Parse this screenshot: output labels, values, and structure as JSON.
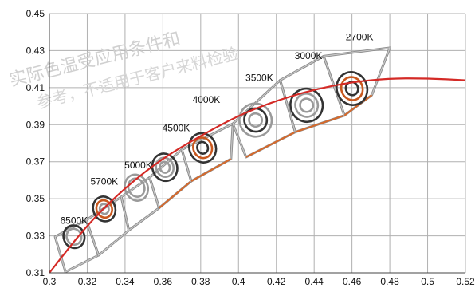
{
  "chart_data": {
    "type": "scatter",
    "title": "",
    "xlabel": "",
    "ylabel": "",
    "xlim": [
      0.3,
      0.52
    ],
    "ylim": [
      0.31,
      0.45
    ],
    "x_ticks": [
      "0.3",
      "0.32",
      "0.34",
      "0.36",
      "0.38",
      "0.4",
      "0.42",
      "0.44",
      "0.46",
      "0.48",
      "0.5",
      "0.52"
    ],
    "y_ticks": [
      "0.31",
      "0.33",
      "0.35",
      "0.37",
      "0.39",
      "0.41",
      "0.43",
      "0.45"
    ],
    "grid": true,
    "colors": {
      "locus": "#d42a26",
      "bin_outline": "#8a8a8a",
      "bin_edge_light": "#c8c8c8",
      "bin_edge_orange": "#d8692a",
      "ellipse_dark": "#333333",
      "ellipse_gray": "#9a9a9a",
      "ellipse_orange": "#c8581e",
      "grid": "#b0b0b0"
    },
    "locus": {
      "name": "blackbody locus",
      "x": [
        0.3,
        0.32,
        0.34,
        0.36,
        0.38,
        0.4,
        0.42,
        0.44,
        0.46,
        0.48,
        0.5,
        0.52
      ],
      "y": [
        0.31,
        0.336,
        0.356,
        0.372,
        0.384,
        0.395,
        0.403,
        0.409,
        0.413,
        0.415,
        0.415,
        0.414
      ]
    },
    "cct_labels": [
      {
        "text": "6500K",
        "x": 0.313,
        "y": 0.3365
      },
      {
        "text": "5700K",
        "x": 0.329,
        "y": 0.3575
      },
      {
        "text": "5000K",
        "x": 0.347,
        "y": 0.3665
      },
      {
        "text": "4500K",
        "x": 0.367,
        "y": 0.3865
      },
      {
        "text": "4000K",
        "x": 0.383,
        "y": 0.4017
      },
      {
        "text": "3500K",
        "x": 0.411,
        "y": 0.4135
      },
      {
        "text": "3000K",
        "x": 0.437,
        "y": 0.4255
      },
      {
        "text": "2700K",
        "x": 0.464,
        "y": 0.4355
      }
    ],
    "ellipses": [
      {
        "cct": "6500K",
        "x": 0.313,
        "y": 0.3295,
        "rx": 0.0055,
        "ry": 0.0062,
        "rings": 2,
        "colors": [
          "#333333",
          "#9a9a9a"
        ]
      },
      {
        "cct": "5700K",
        "x": 0.329,
        "y": 0.3445,
        "rx": 0.0058,
        "ry": 0.0068,
        "rings": 3,
        "colors": [
          "#333333",
          "#c8581e",
          "#9a9a9a"
        ]
      },
      {
        "cct": "5000K",
        "x": 0.346,
        "y": 0.356,
        "rx": 0.006,
        "ry": 0.0072,
        "rings": 2,
        "colors": [
          "#9a9a9a",
          "#9a9a9a"
        ]
      },
      {
        "cct": "4500K",
        "x": 0.361,
        "y": 0.367,
        "rx": 0.0065,
        "ry": 0.0075,
        "rings": 3,
        "colors": [
          "#333333",
          "#9a9a9a",
          "#9a9a9a"
        ]
      },
      {
        "cct": "4000K",
        "x": 0.381,
        "y": 0.3775,
        "rx": 0.007,
        "ry": 0.008,
        "rings": 3,
        "colors": [
          "#333333",
          "#c8581e",
          "#333333"
        ]
      },
      {
        "cct": "3500K",
        "x": 0.409,
        "y": 0.3925,
        "rx": 0.0085,
        "ry": 0.009,
        "rings": 3,
        "colors": [
          "#9a9a9a",
          "#333333",
          "#9a9a9a"
        ]
      },
      {
        "cct": "3000K",
        "x": 0.436,
        "y": 0.4005,
        "rx": 0.0085,
        "ry": 0.009,
        "rings": 3,
        "colors": [
          "#333333",
          "#9a9a9a",
          "#9a9a9a"
        ]
      },
      {
        "cct": "2700K",
        "x": 0.46,
        "y": 0.4095,
        "rx": 0.008,
        "ry": 0.009,
        "rings": 3,
        "colors": [
          "#333333",
          "#c8581e",
          "#333333"
        ]
      }
    ],
    "bins": [
      {
        "cct": "6500K",
        "corners": [
          [
            0.303,
            0.3295
          ],
          [
            0.3195,
            0.3385
          ],
          [
            0.326,
            0.3195
          ],
          [
            0.3085,
            0.3105
          ]
        ]
      },
      {
        "cct": "5700K",
        "corners": [
          [
            0.3195,
            0.3385
          ],
          [
            0.338,
            0.351
          ],
          [
            0.342,
            0.333
          ],
          [
            0.326,
            0.3195
          ]
        ]
      },
      {
        "cct": "5000K",
        "corners": [
          [
            0.338,
            0.351
          ],
          [
            0.353,
            0.3615
          ],
          [
            0.358,
            0.345
          ],
          [
            0.342,
            0.333
          ]
        ]
      },
      {
        "cct": "4500K",
        "corners": [
          [
            0.353,
            0.3615
          ],
          [
            0.37,
            0.3765
          ],
          [
            0.375,
            0.3595
          ],
          [
            0.358,
            0.345
          ]
        ]
      },
      {
        "cct": "4000K",
        "corners": [
          [
            0.37,
            0.3765
          ],
          [
            0.397,
            0.3905
          ],
          [
            0.396,
            0.3715
          ],
          [
            0.375,
            0.3595
          ]
        ]
      },
      {
        "cct": "3500K",
        "corners": [
          [
            0.397,
            0.3905
          ],
          [
            0.422,
            0.414
          ],
          [
            0.43,
            0.386
          ],
          [
            0.404,
            0.3725
          ]
        ]
      },
      {
        "cct": "3000K",
        "corners": [
          [
            0.422,
            0.414
          ],
          [
            0.445,
            0.427
          ],
          [
            0.456,
            0.395
          ],
          [
            0.43,
            0.386
          ]
        ]
      },
      {
        "cct": "2700K",
        "corners": [
          [
            0.445,
            0.427
          ],
          [
            0.48,
            0.4315
          ],
          [
            0.4705,
            0.406
          ],
          [
            0.456,
            0.395
          ]
        ]
      }
    ],
    "watermark": {
      "line1": "实际色温受应用条件和",
      "line2": "参考，不适用于客户来料检验"
    }
  }
}
